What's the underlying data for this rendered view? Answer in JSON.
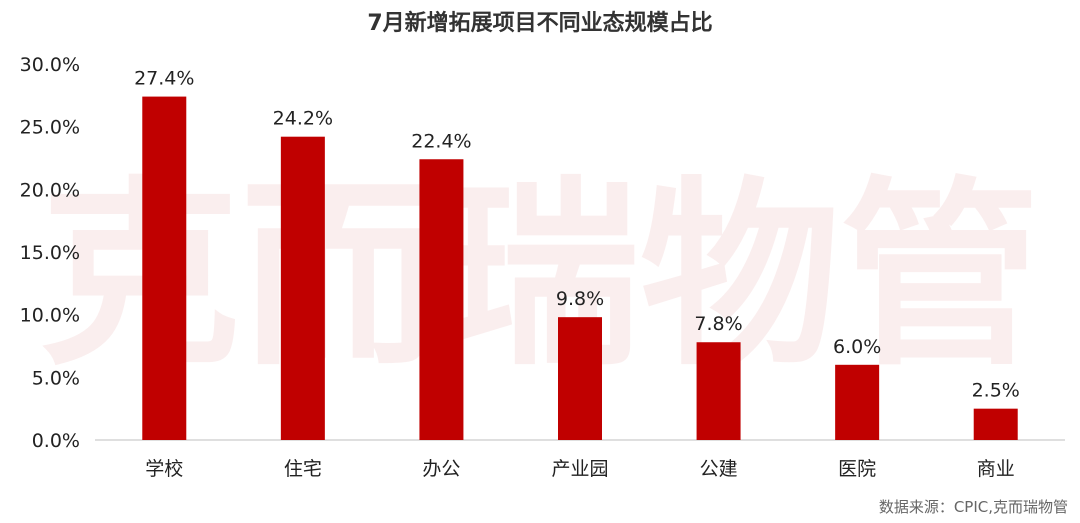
{
  "watermark": "克而瑞物管",
  "source": "数据来源：CPIC,克而瑞物管",
  "colors": {
    "bar": "#c00000",
    "axis": "#bfbfbf",
    "text": "#222222"
  },
  "chart_data": {
    "type": "bar",
    "title": "7月新增拓展项目不同业态规模占比",
    "xlabel": "",
    "ylabel": "",
    "ylim": [
      0,
      30
    ],
    "yticks": [
      "0.0%",
      "5.0%",
      "10.0%",
      "15.0%",
      "20.0%",
      "25.0%",
      "30.0%"
    ],
    "categories": [
      "学校",
      "住宅",
      "办公",
      "产业园",
      "公建",
      "医院",
      "商业"
    ],
    "values": [
      27.4,
      24.2,
      22.4,
      9.8,
      7.8,
      6.0,
      2.5
    ],
    "labels": [
      "27.4%",
      "24.2%",
      "22.4%",
      "9.8%",
      "7.8%",
      "6.0%",
      "2.5%"
    ],
    "grid": false,
    "legend": "none"
  }
}
